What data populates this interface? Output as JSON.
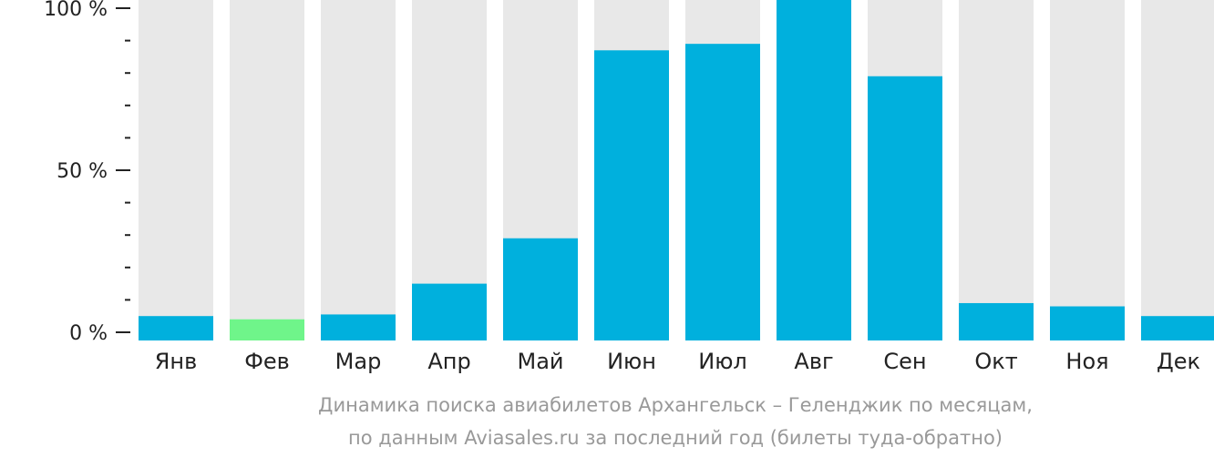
{
  "chart_data": {
    "type": "bar",
    "categories": [
      "Янв",
      "Фев",
      "Мар",
      "Апр",
      "Май",
      "Июн",
      "Июл",
      "Авг",
      "Сен",
      "Окт",
      "Ноя",
      "Дек"
    ],
    "values": [
      5,
      4,
      5.5,
      15,
      29,
      87,
      89,
      104,
      79,
      9,
      8,
      5
    ],
    "highlight_index": 1,
    "ylim": [
      0,
      100
    ],
    "yticks": [
      {
        "value": 0,
        "label": "0 %"
      },
      {
        "value": 50,
        "label": "50 %"
      },
      {
        "value": 100,
        "label": "100 %"
      }
    ],
    "minor_tick_step": 10,
    "grid": false,
    "caption_lines": [
      "Динамика поиска авиабилетов Архангельск – Геленджик по месяцам,",
      "по данным Aviasales.ru за последний год (билеты туда-обратно)"
    ],
    "colors": {
      "bar": "#00b0dd",
      "highlight": "#6ff58a",
      "track": "#e8e8e8",
      "axis": "#222222",
      "caption": "#999999"
    }
  }
}
